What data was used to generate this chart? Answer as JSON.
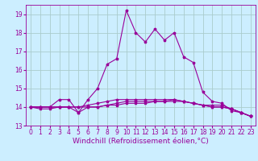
{
  "xlabel": "Windchill (Refroidissement éolien,°C)",
  "background_color": "#cceeff",
  "grid_color": "#aacccc",
  "line_color": "#990099",
  "xlim": [
    -0.5,
    23.5
  ],
  "ylim": [
    13,
    19.5
  ],
  "yticks": [
    13,
    14,
    15,
    16,
    17,
    18,
    19
  ],
  "xticks": [
    0,
    1,
    2,
    3,
    4,
    5,
    6,
    7,
    8,
    9,
    10,
    11,
    12,
    13,
    14,
    15,
    16,
    17,
    18,
    19,
    20,
    21,
    22,
    23
  ],
  "series": [
    [
      14.0,
      14.0,
      14.0,
      14.4,
      14.4,
      13.7,
      14.4,
      15.0,
      16.3,
      16.6,
      19.2,
      18.0,
      17.5,
      18.2,
      17.6,
      18.0,
      16.7,
      16.4,
      14.8,
      14.3,
      14.2,
      13.8,
      13.7,
      13.5
    ],
    [
      14.0,
      13.9,
      13.9,
      14.0,
      14.0,
      13.7,
      14.0,
      14.0,
      14.1,
      14.1,
      14.2,
      14.2,
      14.2,
      14.3,
      14.3,
      14.3,
      14.3,
      14.2,
      14.1,
      14.1,
      14.1,
      13.9,
      13.7,
      13.5
    ],
    [
      14.0,
      14.0,
      14.0,
      14.0,
      14.0,
      14.0,
      14.0,
      14.0,
      14.1,
      14.2,
      14.3,
      14.3,
      14.3,
      14.3,
      14.3,
      14.4,
      14.3,
      14.2,
      14.1,
      14.0,
      14.0,
      13.9,
      13.7,
      13.5
    ],
    [
      14.0,
      14.0,
      14.0,
      14.0,
      14.0,
      14.0,
      14.1,
      14.2,
      14.3,
      14.4,
      14.4,
      14.4,
      14.4,
      14.4,
      14.4,
      14.4,
      14.3,
      14.2,
      14.1,
      14.0,
      14.0,
      13.9,
      13.7,
      13.5
    ]
  ],
  "tick_fontsize": 5.5,
  "xlabel_fontsize": 6.5
}
